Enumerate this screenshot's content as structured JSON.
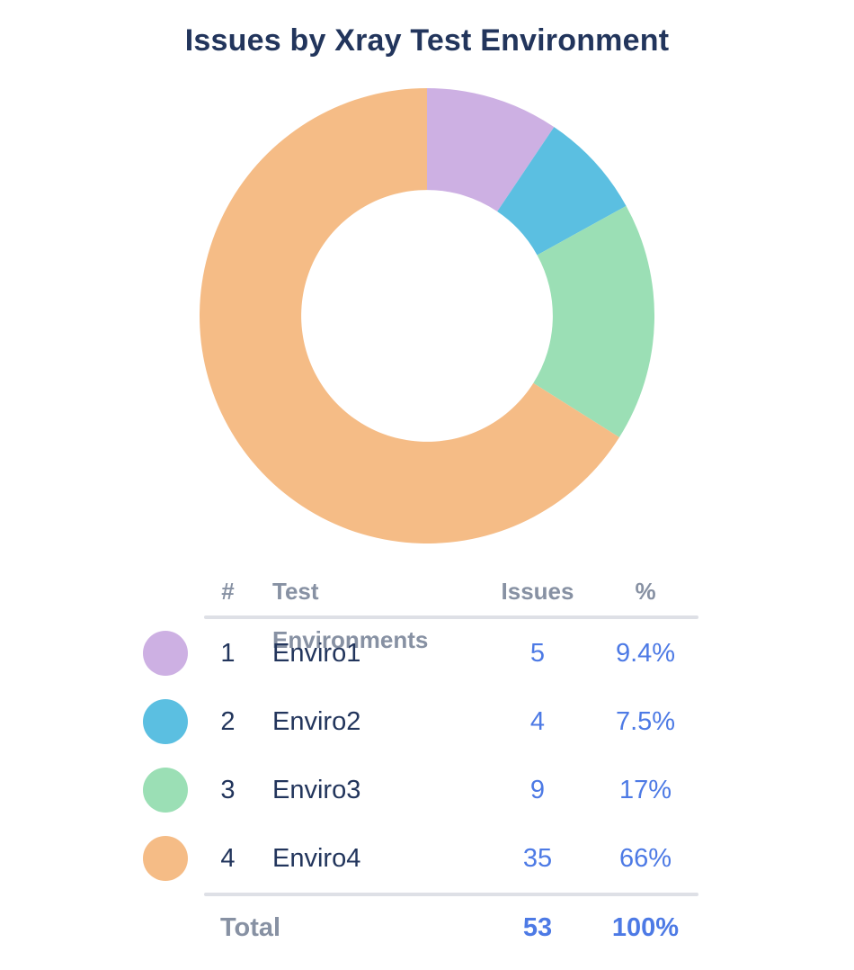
{
  "title": "Issues by Xray Test Environment",
  "colors": {
    "background": "#FFFFFF",
    "title_text": "#22355C",
    "header_text": "#8791A3",
    "body_text": "#22355C",
    "value_text": "#4D7AE5",
    "divider": "#DEE0E6"
  },
  "chart_data": {
    "type": "pie",
    "subtype": "donut",
    "title": "Issues by Xray Test Environment",
    "categories": [
      "Enviro1",
      "Enviro2",
      "Enviro3",
      "Enviro4"
    ],
    "values": [
      5,
      4,
      9,
      35
    ],
    "percent_labels": [
      "9.4%",
      "7.5%",
      "17%",
      "66%"
    ],
    "colors": [
      "#CDB0E3",
      "#5BBFE1",
      "#9BDFB5",
      "#F5BC86"
    ],
    "total": 53,
    "start_angle_deg_from_top": 0,
    "direction": "clockwise",
    "inner_radius_ratio": 0.553,
    "legend_position": "table-below",
    "data_labels_on_slices": false
  },
  "table": {
    "headers": [
      "#",
      "Test Environments",
      "Issues",
      "%"
    ],
    "rows": [
      {
        "num": "1",
        "env": "Enviro1",
        "issues": "5",
        "pct": "9.4%",
        "color": "#CDB0E3"
      },
      {
        "num": "2",
        "env": "Enviro2",
        "issues": "4",
        "pct": "7.5%",
        "color": "#5BBFE1"
      },
      {
        "num": "3",
        "env": "Enviro3",
        "issues": "9",
        "pct": "17%",
        "color": "#9BDFB5"
      },
      {
        "num": "4",
        "env": "Enviro4",
        "issues": "35",
        "pct": "66%",
        "color": "#F5BC86"
      }
    ],
    "total": {
      "label": "Total",
      "issues": "53",
      "pct": "100%"
    }
  }
}
